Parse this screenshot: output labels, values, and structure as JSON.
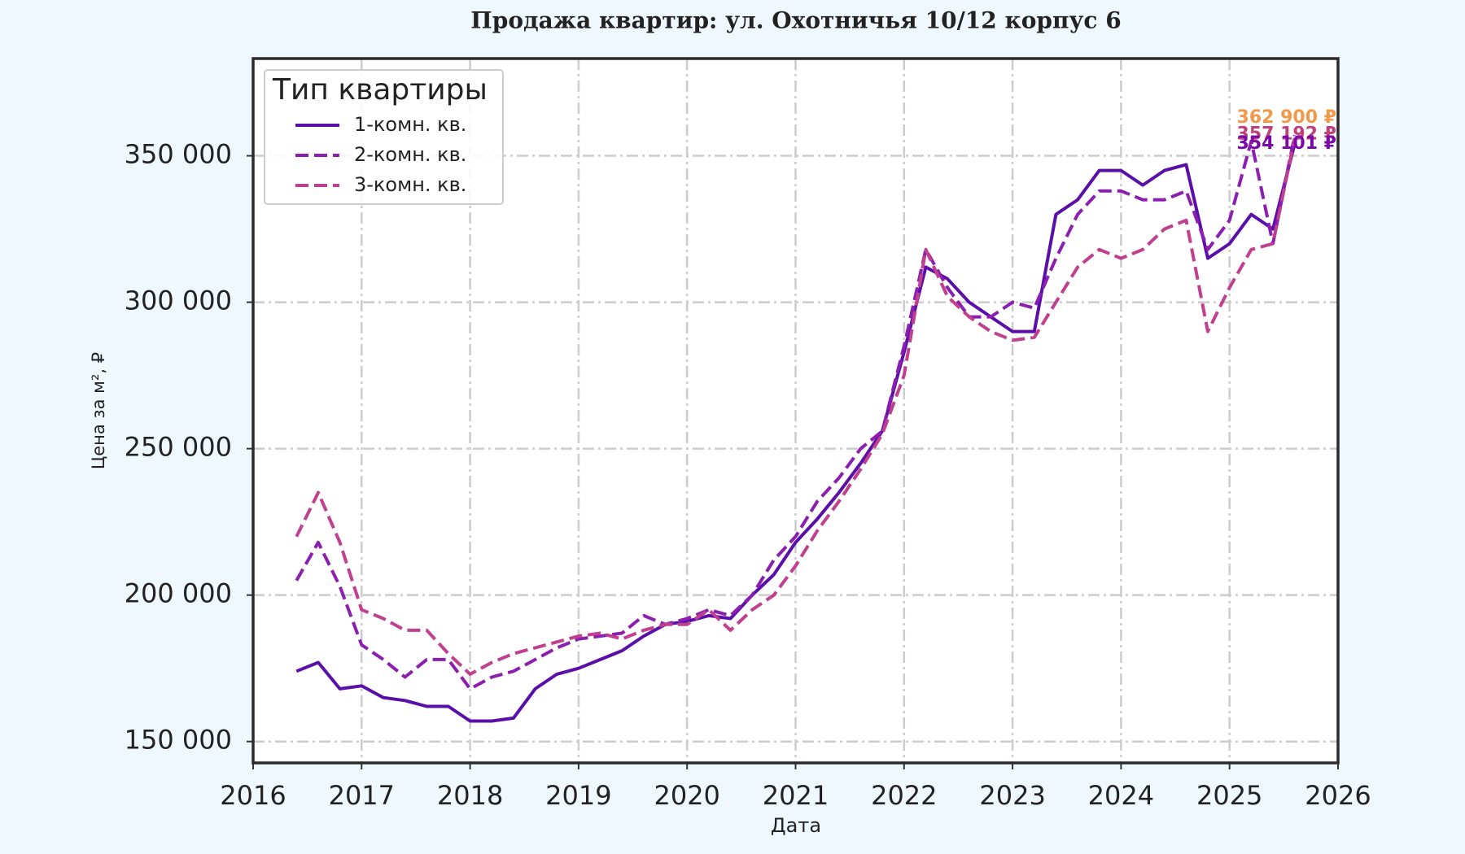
{
  "chart_data": {
    "type": "line",
    "title": "Продажа квартир: ул. Охотничья 10/12 корпус 6",
    "xlabel": "Дата",
    "ylabel": "Цена за м², ₽",
    "legend_title": "Тип квартиры",
    "legend": "upper left",
    "grid": true,
    "x": [
      2016.4,
      2016.6,
      2016.8,
      2017.0,
      2017.2,
      2017.4,
      2017.6,
      2017.8,
      2018.0,
      2018.2,
      2018.4,
      2018.6,
      2018.8,
      2019.0,
      2019.2,
      2019.4,
      2019.6,
      2019.8,
      2020.0,
      2020.2,
      2020.4,
      2020.6,
      2020.8,
      2021.0,
      2021.2,
      2021.4,
      2021.6,
      2021.8,
      2022.0,
      2022.2,
      2022.4,
      2022.6,
      2022.8,
      2023.0,
      2023.2,
      2023.4,
      2023.6,
      2023.8,
      2024.0,
      2024.2,
      2024.4,
      2024.6,
      2024.8,
      2025.0,
      2025.2,
      2025.4,
      2025.6
    ],
    "series": [
      {
        "name": "1-комн. кв.",
        "color": "#5a0fa8",
        "linestyle": "solid",
        "values": [
          174000,
          177000,
          168000,
          169000,
          165000,
          164000,
          162000,
          162000,
          157000,
          157000,
          158000,
          168000,
          173000,
          175000,
          178000,
          181000,
          186000,
          190000,
          191000,
          193000,
          192000,
          200000,
          207000,
          218000,
          226000,
          235000,
          245000,
          256000,
          283000,
          312000,
          308000,
          300000,
          295000,
          290000,
          290000,
          330000,
          335000,
          345000,
          345000,
          340000,
          345000,
          347000,
          315000,
          320000,
          330000,
          325000,
          354000
        ]
      },
      {
        "name": "2-комн. кв.",
        "color": "#8b1fb0",
        "linestyle": "dashed",
        "values": [
          205000,
          218000,
          203000,
          183000,
          178000,
          172000,
          178000,
          178000,
          168000,
          172000,
          174000,
          178000,
          182000,
          185000,
          186000,
          187000,
          193000,
          190000,
          192000,
          195000,
          193000,
          200000,
          212000,
          220000,
          232000,
          240000,
          250000,
          256000,
          285000,
          318000,
          305000,
          295000,
          295000,
          300000,
          298000,
          315000,
          330000,
          338000,
          338000,
          335000,
          335000,
          338000,
          318000,
          328000,
          355000,
          320000,
          357000
        ]
      },
      {
        "name": "3-комн. кв.",
        "color": "#c0408f",
        "linestyle": "dashed",
        "values": [
          220000,
          235000,
          218000,
          195000,
          192000,
          188000,
          188000,
          180000,
          173000,
          177000,
          180000,
          182000,
          184000,
          186000,
          187000,
          185000,
          188000,
          190000,
          190000,
          195000,
          188000,
          195000,
          200000,
          210000,
          222000,
          232000,
          243000,
          255000,
          275000,
          318000,
          302000,
          295000,
          290000,
          287000,
          288000,
          300000,
          312000,
          318000,
          315000,
          318000,
          325000,
          328000,
          290000,
          305000,
          318000,
          320000,
          356000
        ]
      }
    ],
    "annotations": [
      {
        "value": 362900,
        "label": "362 900 ₽",
        "color": "#f0994a"
      },
      {
        "value": 357192,
        "label": "357 192 ₽",
        "color": "#c0407a"
      },
      {
        "value": 354101,
        "label": "354 101 ₽",
        "color": "#7a0aa8"
      }
    ],
    "xlim": [
      2016,
      2026
    ],
    "xticks": [
      2016,
      2017,
      2018,
      2019,
      2020,
      2021,
      2022,
      2023,
      2024,
      2025,
      2026
    ],
    "ylim": [
      142700,
      383200
    ],
    "yticks": [
      {
        "value": 150000,
        "label": "150 000"
      },
      {
        "value": 200000,
        "label": "200 000"
      },
      {
        "value": 250000,
        "label": "250 000"
      },
      {
        "value": 300000,
        "label": "300 000"
      },
      {
        "value": 350000,
        "label": "350 000"
      }
    ]
  }
}
